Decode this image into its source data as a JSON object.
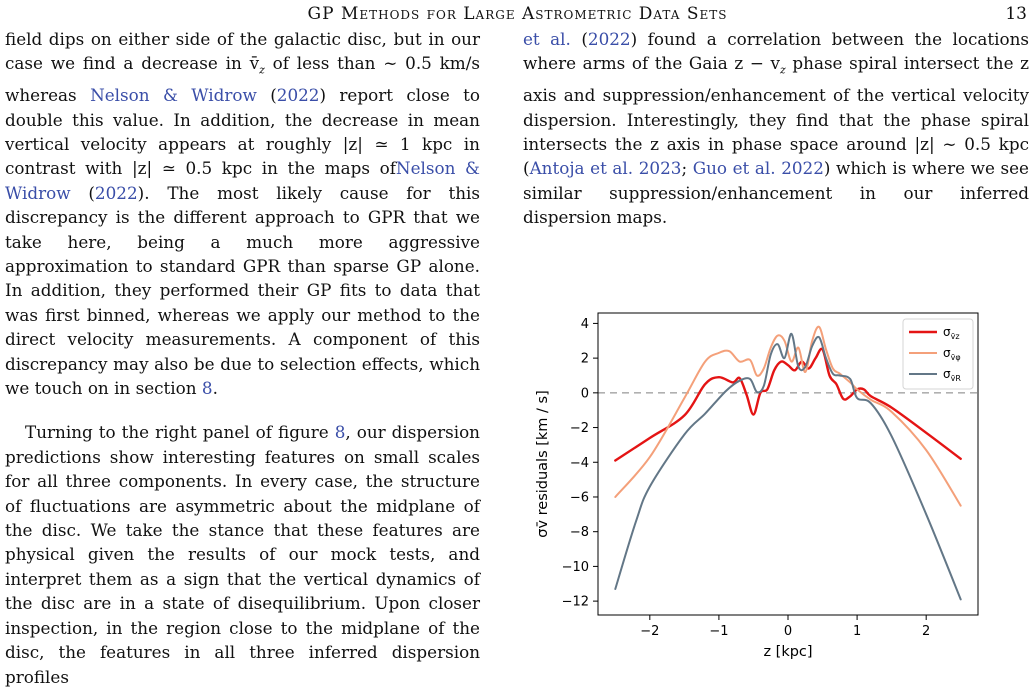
{
  "header": {
    "title": "GP Methods for Large Astrometric Data Sets",
    "page_number": "13"
  },
  "left_column": {
    "paragraphs": [
      [
        {
          "t": "field dips on either side of the galactic disc, but in our case we find a decrease in "
        },
        {
          "t": "v̄"
        },
        {
          "t": "z",
          "sub": true
        },
        {
          "t": " of less than ∼ 0.5 km/s whereas "
        },
        {
          "t": "Nelson & Widrow",
          "cite": true
        },
        {
          "t": " ("
        },
        {
          "t": "2022",
          "cite": true
        },
        {
          "t": ") report close to double this value. In addition, the decrease in mean vertical velocity appears at roughly |z| ≃ 1 kpc in contrast with |z| ≃ 0.5 kpc in the maps of"
        },
        {
          "t": "Nelson & Widrow",
          "cite": true
        },
        {
          "t": " ("
        },
        {
          "t": "2022",
          "cite": true
        },
        {
          "t": "). The most likely cause for this discrepancy is the different approach to GPR that we take here, being a much more aggressive approximation to standard GPR than sparse GP alone. In addition, they performed their GP fits to data that was first binned, whereas we apply our method to the direct velocity measurements. A component of this discrepancy may also be due to selection effects, which we touch on in section "
        },
        {
          "t": "8",
          "cite": true
        },
        {
          "t": "."
        }
      ],
      [
        {
          "t": "Turning to the right panel of figure "
        },
        {
          "t": "8",
          "cite": true
        },
        {
          "t": ", our dispersion predictions show interesting features on small scales for all three components. In every case, the structure of fluctuations are asymmetric about the midplane of the disc. We take the stance that these features are physical given the results of our mock tests, and interpret them as a sign that the vertical dynamics of the disc are in a state of disequilibrium. Upon closer inspection, in the region close to the midplane of the disc, the features in all three inferred dispersion profiles"
        }
      ]
    ]
  },
  "right_column": {
    "paragraphs": [
      [
        {
          "t": "et al.",
          "cite": true
        },
        {
          "t": " ("
        },
        {
          "t": "2022",
          "cite": true
        },
        {
          "t": ") found a correlation between the locations where arms of the Gaia z − v"
        },
        {
          "t": "z",
          "sub": true
        },
        {
          "t": " phase spiral intersect the z axis and suppression/enhancement of the vertical velocity dispersion. Interestingly, they find that the phase spiral intersects the z axis in phase space around |z| ∼ 0.5 kpc ("
        },
        {
          "t": "Antoja et al. 2023",
          "cite": true
        },
        {
          "t": "; "
        },
        {
          "t": "Guo et al. 2022",
          "cite": true
        },
        {
          "t": ") which is where we see similar suppression/enhancement in our inferred dispersion maps."
        }
      ]
    ]
  },
  "chart_data": {
    "type": "line",
    "xlabel": "z [kpc]",
    "ylabel": "σv̄ residuals [km / s]",
    "xlim": [
      -2.75,
      2.75
    ],
    "ylim": [
      -12.8,
      4.6
    ],
    "xticks": [
      -2,
      -1,
      0,
      1,
      2
    ],
    "xtick_labels": [
      "−2",
      "−1",
      "0",
      "1",
      "2"
    ],
    "yticks": [
      4,
      2,
      0,
      -2,
      -4,
      -6,
      -8,
      -10,
      -12
    ],
    "ytick_labels": [
      "4",
      "2",
      "0",
      "−2",
      "−4",
      "−6",
      "−8",
      "−10",
      "−12"
    ],
    "grid": false,
    "zero_line": true,
    "legend_position": "top-right",
    "series": [
      {
        "name": "σv̄z",
        "legend_main": "σ",
        "legend_sub": "v̄z",
        "color": "#e41414",
        "width": 2.4,
        "x": [
          -2.5,
          -2.0,
          -1.5,
          -1.2,
          -1.0,
          -0.8,
          -0.7,
          -0.6,
          -0.5,
          -0.4,
          -0.3,
          -0.2,
          -0.1,
          0.0,
          0.1,
          0.2,
          0.3,
          0.4,
          0.5,
          0.6,
          0.7,
          0.8,
          0.9,
          1.0,
          1.1,
          1.2,
          1.5,
          2.0,
          2.5
        ],
        "y": [
          -3.9,
          -2.6,
          -1.3,
          0.5,
          0.9,
          0.6,
          0.85,
          -0.1,
          -1.25,
          0.0,
          0.2,
          1.3,
          1.8,
          1.6,
          1.3,
          1.8,
          1.4,
          2.0,
          2.5,
          1.0,
          0.5,
          -0.35,
          -0.2,
          0.2,
          0.2,
          -0.2,
          -0.85,
          -2.3,
          -3.8
        ]
      },
      {
        "name": "σv̄φ",
        "legend_main": "σ",
        "legend_sub": "v̄φ",
        "color": "#f4a07a",
        "width": 2.0,
        "x": [
          -2.5,
          -2.0,
          -1.5,
          -1.2,
          -1.0,
          -0.85,
          -0.7,
          -0.55,
          -0.45,
          -0.35,
          -0.25,
          -0.15,
          -0.05,
          0.05,
          0.15,
          0.25,
          0.35,
          0.45,
          0.55,
          0.65,
          0.75,
          0.9,
          1.0,
          1.2,
          1.5,
          2.0,
          2.5
        ],
        "y": [
          -6.0,
          -3.7,
          -0.3,
          1.8,
          2.3,
          2.4,
          1.8,
          1.9,
          1.0,
          1.4,
          2.6,
          3.3,
          3.0,
          1.8,
          2.6,
          1.2,
          3.0,
          3.8,
          2.5,
          1.4,
          1.1,
          0.6,
          0.2,
          -0.4,
          -1.1,
          -3.3,
          -6.5
        ]
      },
      {
        "name": "σv̄R",
        "legend_main": "σ",
        "legend_sub": "v̄R",
        "color": "#637787",
        "width": 2.0,
        "x": [
          -2.5,
          -2.2,
          -2.0,
          -1.5,
          -1.2,
          -0.9,
          -0.7,
          -0.55,
          -0.45,
          -0.35,
          -0.25,
          -0.15,
          -0.05,
          0.05,
          0.15,
          0.25,
          0.35,
          0.45,
          0.55,
          0.65,
          0.75,
          0.9,
          1.0,
          1.2,
          1.5,
          2.0,
          2.5
        ],
        "y": [
          -11.3,
          -7.4,
          -5.4,
          -2.4,
          -1.2,
          0.1,
          0.7,
          0.8,
          0.05,
          0.4,
          2.2,
          2.8,
          2.0,
          3.4,
          1.5,
          1.5,
          2.7,
          3.2,
          2.0,
          1.1,
          1.0,
          0.8,
          -0.3,
          -0.6,
          -2.5,
          -7.0,
          -11.9
        ]
      }
    ]
  }
}
